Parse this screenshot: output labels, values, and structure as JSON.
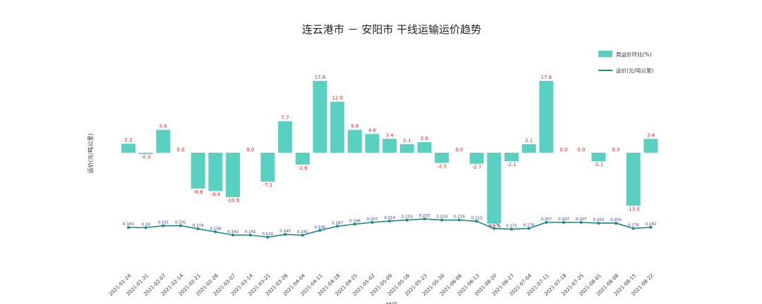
{
  "chart_data": {
    "type": "bar",
    "title": "连云港市 － 安阳市 干线运输运价趋势",
    "ylabel": "运价(元/吨公里)",
    "xlabel": "时间",
    "categories": [
      "2021-01-24",
      "2021-01-31",
      "2021-02-07",
      "2021-02-14",
      "2021-02-21",
      "2021-02-28",
      "2021-03-07",
      "2021-03-14",
      "2021-03-21",
      "2021-03-28",
      "2021-04-04",
      "2021-04-11",
      "2021-04-18",
      "2021-04-25",
      "2021-05-02",
      "2021-05-09",
      "2021-05-16",
      "2021-05-23",
      "2021-05-30",
      "2021-06-06",
      "2021-06-13",
      "2021-06-20",
      "2021-06-27",
      "2021-07-04",
      "2021-07-11",
      "2021-07-18",
      "2021-07-25",
      "2021-08-01",
      "2021-08-08",
      "2021-08-15",
      "2021-08-22"
    ],
    "series": [
      {
        "name": "周运价环比(%)",
        "type": "bar",
        "color": "#5ad0c0",
        "values": [
          2.2,
          -0.3,
          5.6,
          0.0,
          -8.8,
          -9.4,
          -10.9,
          0.0,
          -7.1,
          7.7,
          -2.9,
          17.6,
          12.5,
          5.6,
          4.6,
          3.4,
          2.1,
          2.6,
          -2.5,
          0.0,
          -2.7,
          -17.3,
          -2.1,
          2.1,
          17.6,
          0.0,
          0.0,
          -2.1,
          0.0,
          -13.0,
          3.4
        ],
        "labels": [
          "2.2",
          "-0.3",
          "5.6",
          "0.0",
          "-8.8",
          "-9.4",
          "-10.9",
          "0.0",
          "-7.1",
          "7.7",
          "-2.9",
          "17.6",
          "12.5",
          "5.6",
          "4.6",
          "3.4",
          "2.1",
          "2.6",
          "-2.5",
          "0.0",
          "-2.7",
          "-17.3",
          "-2.1",
          "2.1",
          "17.6",
          "0.0",
          "0.0",
          "-2.1",
          "0.0",
          "-13.0",
          "3.4"
        ]
      },
      {
        "name": "运价(元/吨公里)",
        "type": "line",
        "color": "#1a8a80",
        "values": [
          0.181,
          0.18,
          0.19,
          0.19,
          0.174,
          0.158,
          0.142,
          0.142,
          0.131,
          0.145,
          0.141,
          0.166,
          0.187,
          0.198,
          0.207,
          0.214,
          0.219,
          0.225,
          0.219,
          0.219,
          0.213,
          0.176,
          0.172,
          0.176,
          0.207,
          0.207,
          0.207,
          0.203,
          0.203,
          0.176,
          0.182
        ],
        "labels": [
          "0.181",
          "0.18",
          "0.191",
          "0.191",
          "0.174",
          "0.158",
          "0.142",
          "0.142",
          "0.131",
          "0.145",
          "0.141",
          "0.166",
          "0.187",
          "0.198",
          "0.207",
          "0.214",
          "0.219",
          "0.225",
          "0.219",
          "0.219",
          "0.213",
          "0.176",
          "0.172",
          "0.176",
          "0.207",
          "0.207",
          "0.207",
          "0.203",
          "0.203",
          "0.176",
          "0.182"
        ]
      }
    ],
    "legend_position": "top-right"
  }
}
